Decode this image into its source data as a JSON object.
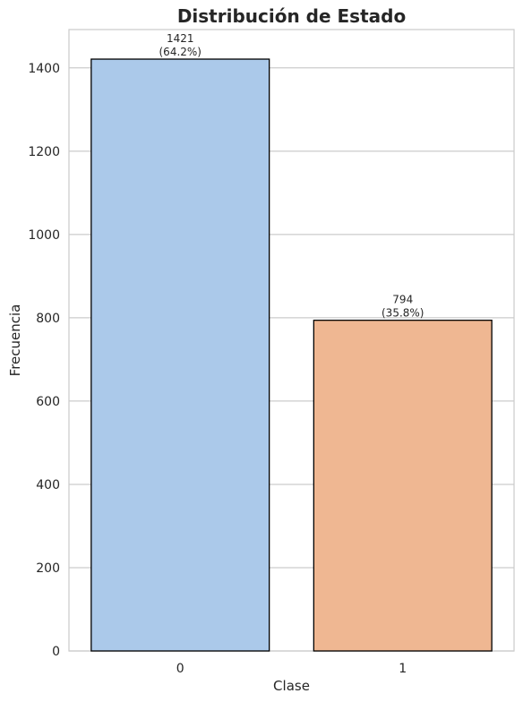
{
  "chart_data": {
    "type": "bar",
    "title": "Distribución de Estado",
    "xlabel": "Clase",
    "ylabel": "Frecuencia",
    "categories": [
      "0",
      "1"
    ],
    "values": [
      1421,
      794
    ],
    "data_labels": [
      {
        "count": "1421",
        "percent": "(64.2%)"
      },
      {
        "count": "794",
        "percent": "(35.8%)"
      }
    ],
    "colors": [
      "#abc9ea",
      "#efb792"
    ],
    "edge_color": "#000000",
    "ylim": [
      0,
      1492
    ],
    "yticks": [
      0,
      200,
      400,
      600,
      800,
      1000,
      1200,
      1400
    ],
    "ytick_labels": [
      "0",
      "200",
      "400",
      "600",
      "800",
      "1000",
      "1200",
      "1400"
    ],
    "grid": "horizontal",
    "legend": "none"
  }
}
